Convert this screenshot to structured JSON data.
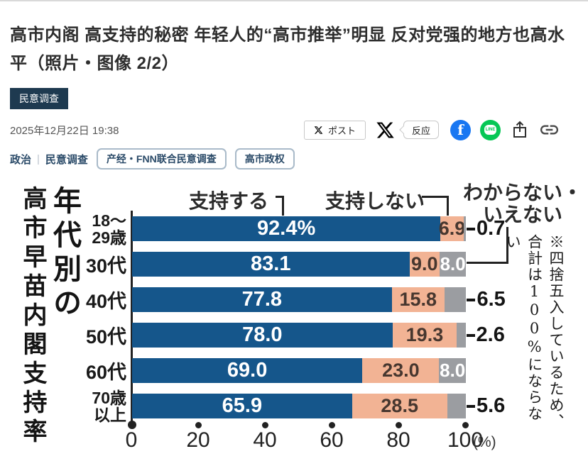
{
  "page": {
    "title": "高市内阁 高支持的秘密 年轻人的“高市推举”明显 反对党强的地方也高水平（照片・图像 2/2）",
    "category_badge": "民意调查",
    "date": "2025年12月22日 19:38"
  },
  "share": {
    "post_label": "ポスト",
    "react_label": "反应",
    "line_label": "LINE",
    "facebook_letter": "f",
    "icons": [
      "x-post-button",
      "x-logo",
      "react-bubble",
      "facebook-icon",
      "line-icon",
      "share-icon",
      "link-icon"
    ]
  },
  "tags": {
    "links": [
      "政治",
      "民意调查"
    ],
    "separator": "|",
    "pills": [
      "产经・FNN联合民意调查",
      "高市政权"
    ]
  },
  "chart_data": {
    "type": "bar",
    "orientation": "horizontal-stacked",
    "title_col_right": "年代別の",
    "title_col_left": "高市早苗内閣支持率",
    "legend": [
      "支持する",
      "支持しない",
      "わからない・いえない"
    ],
    "note": "※四捨五入しているため、合計は100%にならない",
    "x_ticks": [
      "0",
      "20",
      "40",
      "60",
      "80",
      "100"
    ],
    "x_unit": "(%)",
    "xlim": [
      0,
      100
    ],
    "grid": false,
    "colors": {
      "support": "#15568B",
      "oppose": "#F2B394",
      "unknown": "#9B9DA1"
    },
    "categories": [
      "18～29歳",
      "30代",
      "40代",
      "50代",
      "60代",
      "70歳以上"
    ],
    "series_names": [
      "支持する",
      "支持しない",
      "わからない・いえない"
    ],
    "rows": [
      {
        "category": "18～\n29歳",
        "values": [
          92.4,
          6.9,
          0.7
        ],
        "support_label": "92.4%",
        "oppose_label": "6.9",
        "unknown_label": "",
        "outside_label": "0.7"
      },
      {
        "category": "30代",
        "values": [
          83.1,
          9.0,
          8.0
        ],
        "support_label": "83.1",
        "oppose_label": "9.0",
        "unknown_label": "8.0",
        "outside_label": ""
      },
      {
        "category": "40代",
        "values": [
          77.8,
          15.8,
          6.5
        ],
        "support_label": "77.8",
        "oppose_label": "15.8",
        "unknown_label": "",
        "outside_label": "6.5"
      },
      {
        "category": "50代",
        "values": [
          78.0,
          19.3,
          2.6
        ],
        "support_label": "78.0",
        "oppose_label": "19.3",
        "unknown_label": "",
        "outside_label": "2.6"
      },
      {
        "category": "60代",
        "values": [
          69.0,
          23.0,
          8.0
        ],
        "support_label": "69.0",
        "oppose_label": "23.0",
        "unknown_label": "8.0",
        "outside_label": ""
      },
      {
        "category": "70歳\n以上",
        "values": [
          65.9,
          28.5,
          5.6
        ],
        "support_label": "65.9",
        "oppose_label": "28.5",
        "unknown_label": "",
        "outside_label": "5.6"
      }
    ]
  }
}
